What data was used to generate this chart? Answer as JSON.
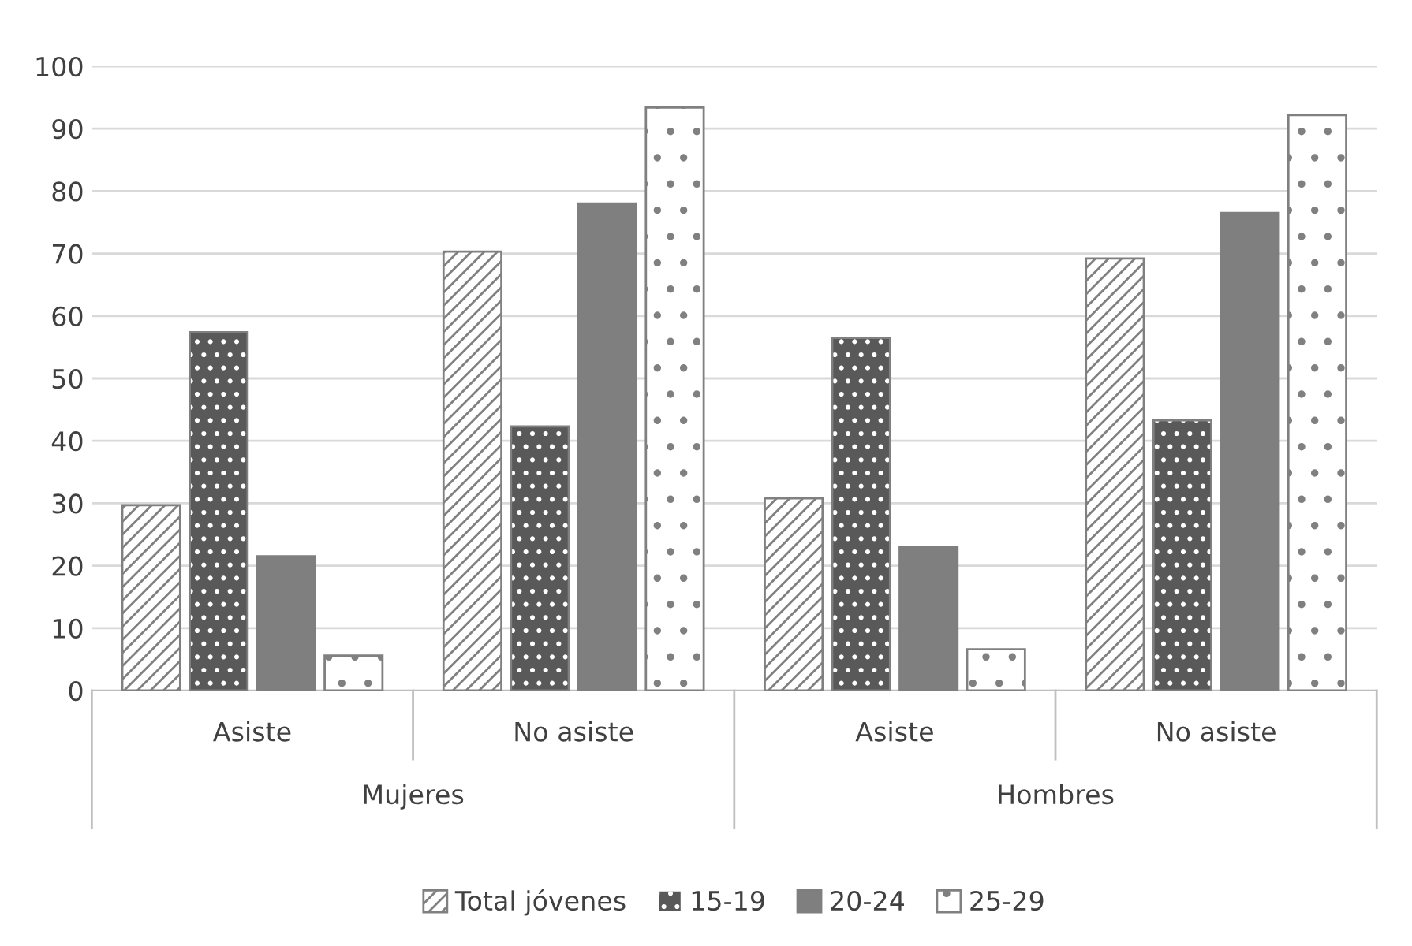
{
  "chart_data": {
    "type": "bar",
    "categories": [
      "Asiste",
      "No asiste",
      "Asiste",
      "No asiste"
    ],
    "series": [
      {
        "name": "Total jóvenes",
        "color": "#ffffff",
        "values": [
          29.7,
          70.3,
          30.8,
          69.2
        ]
      },
      {
        "name": "15-19",
        "color": "#595959",
        "values": [
          57.4,
          42.3,
          56.5,
          43.3
        ]
      },
      {
        "name": "20-24",
        "color": "#7f7f7f",
        "values": [
          21.5,
          78.0,
          23.0,
          76.5
        ]
      },
      {
        "name": "25-29",
        "color": "#ffffff",
        "values": [
          5.6,
          93.4,
          6.6,
          92.2
        ]
      }
    ],
    "annotations": [
      "Mujeres",
      "Hombres"
    ],
    "ylim": [
      0,
      100
    ],
    "yticks": [
      0,
      10,
      20,
      30,
      40,
      50,
      60,
      70,
      80,
      90,
      100
    ],
    "grid": "y",
    "legend": "bottom"
  }
}
